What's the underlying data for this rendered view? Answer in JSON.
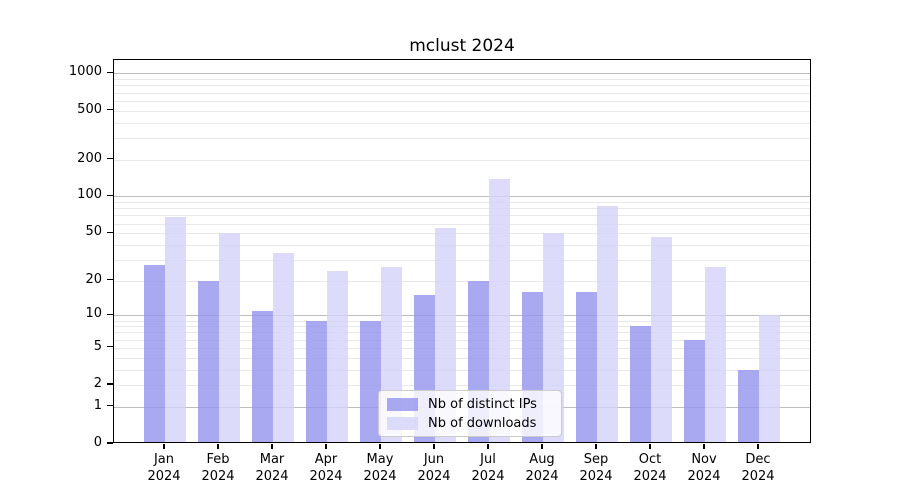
{
  "chart_data": {
    "type": "bar",
    "title": "mclust 2024",
    "categories": [
      "Jan",
      "Feb",
      "Mar",
      "Apr",
      "May",
      "Jun",
      "Jul",
      "Aug",
      "Sep",
      "Oct",
      "Nov",
      "Dec"
    ],
    "x_tick_year": "2024",
    "series": [
      {
        "name": "Nb of distinct IPs",
        "color": "rgba(148,148,238,0.8)",
        "color_solid": "#a9a9ee",
        "values": [
          27,
          20,
          11,
          9,
          9,
          15,
          20,
          16,
          16,
          8,
          6,
          3
        ]
      },
      {
        "name": "Nb of downloads",
        "color": "rgba(211,211,249,0.8)",
        "color_solid": "#dcdcf9",
        "values": [
          68,
          50,
          34,
          24,
          26,
          55,
          140,
          50,
          83,
          46,
          26,
          10
        ]
      }
    ],
    "y_ticks": [
      0,
      1,
      2,
      5,
      10,
      20,
      50,
      100,
      200,
      500,
      1000
    ],
    "y_scale": "log10(value+1)",
    "ylim": [
      0,
      1200
    ],
    "grid": "horizontal, minor log lines light gray, decade lines darker gray",
    "legend_position": "lower center inside plot",
    "colors": {
      "axis": "#000000",
      "major_grid": "#bdbdbd",
      "minor_grid": "#e8e8e8",
      "background": "#ffffff"
    }
  }
}
